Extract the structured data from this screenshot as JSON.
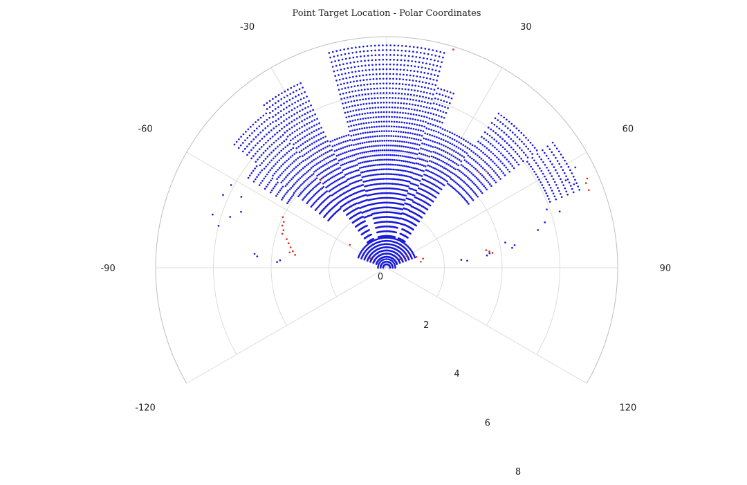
{
  "chart_data": {
    "type": "scatter",
    "coordinate_system": "polar",
    "title": "Point Target Location - Polar Coordinates",
    "theta_zero_location": "top",
    "theta_direction": "clockwise",
    "theta_range_deg": [
      -120,
      120
    ],
    "r_range": [
      0,
      8
    ],
    "theta_ticks": [
      -120,
      -90,
      -60,
      -30,
      0,
      30,
      60,
      90,
      120
    ],
    "theta_tick_labels": [
      "-120",
      "-90",
      "-60",
      "-30",
      "0",
      "30",
      "60",
      "90",
      "120"
    ],
    "r_ticks": [
      0,
      2,
      4,
      6,
      8
    ],
    "r_tick_labels": [
      "0",
      "2",
      "4",
      "6",
      "8"
    ],
    "grid": true,
    "legend": "none",
    "colors": {
      "primary": "#1a1adb",
      "highlight": "#e0301e",
      "grid": "#dcdcdc",
      "outer_ring": "#bdbdbd"
    },
    "series": [
      {
        "color": "#1a1adb",
        "rays": [
          {
            "theta_start": -57,
            "theta_end": -52,
            "theta_step": 1,
            "r_start": 4.1,
            "r_end": 5.8,
            "r_step": 0.23
          },
          {
            "theta_start": -51,
            "theta_end": -38,
            "theta_step": 1,
            "r_start": 2.6,
            "r_end": 6.8,
            "r_step": 0.19
          },
          {
            "theta_start": -37,
            "theta_end": -25,
            "theta_step": 1,
            "r_start": 1.1,
            "r_end": 7.2,
            "r_step": 0.17
          },
          {
            "theta_start": -24,
            "theta_end": -16,
            "theta_step": 1,
            "r_start": 1.9,
            "r_end": 4.9,
            "r_step": 0.18
          },
          {
            "theta_start": -15,
            "theta_end": 15,
            "theta_step": 1,
            "r_start": 1.1,
            "r_end": 7.7,
            "r_step": 0.165
          },
          {
            "theta_start": 16,
            "theta_end": 21,
            "theta_step": 1,
            "r_start": 1.6,
            "r_end": 6.6,
            "r_step": 0.18
          },
          {
            "theta_start": 22,
            "theta_end": 35,
            "theta_step": 1,
            "r_start": 1.1,
            "r_end": 5.2,
            "r_step": 0.17
          },
          {
            "theta_start": 36,
            "theta_end": 52,
            "theta_step": 1,
            "r_start": 3.6,
            "r_end": 6.6,
            "r_step": 0.2
          },
          {
            "theta_start": 53,
            "theta_end": 68,
            "theta_step": 1,
            "r_start": 6.1,
            "r_end": 7.2,
            "r_step": 0.22
          },
          {
            "theta_start": -70,
            "theta_end": 70,
            "theta_step": 2.5,
            "r_start": 0.38,
            "r_end": 1.05,
            "r_step": 0.11
          },
          {
            "theta_start": -90,
            "theta_end": 90,
            "theta_step": 10,
            "r_start": 0.12,
            "r_end": 0.3,
            "r_step": 0.09
          }
        ],
        "points": [
          [
            -64,
            5.6
          ],
          [
            -66,
            6.2
          ],
          [
            -69,
            5.4
          ],
          [
            -72,
            5.7
          ],
          [
            -73,
            6.3
          ],
          [
            -76,
            6.0
          ],
          [
            -62,
            6.1
          ],
          [
            62,
            7.4
          ],
          [
            64,
            6.9
          ],
          [
            66,
            7.1
          ],
          [
            70,
            5.9
          ],
          [
            72,
            6.3
          ],
          [
            74,
            5.7
          ],
          [
            76,
            5.4
          ],
          [
            78,
            4.2
          ],
          [
            80,
            4.5
          ],
          [
            81,
            4.4
          ],
          [
            82,
            3.6
          ],
          [
            83,
            3.5
          ],
          [
            84,
            2.6
          ],
          [
            85,
            2.8
          ],
          [
            -85,
            4.5
          ],
          [
            -84,
            4.6
          ],
          [
            -86,
            3.7
          ],
          [
            -87,
            3.8
          ]
        ]
      },
      {
        "color": "#e0301e",
        "points": [
          [
            17,
            7.9
          ],
          [
            66,
            7.6
          ],
          [
            67,
            7.5
          ],
          [
            69,
            7.5
          ],
          [
            44,
            4.6
          ],
          [
            46,
            4.8
          ],
          [
            -64,
            4.0
          ],
          [
            -66,
            3.9
          ],
          [
            -68,
            3.9
          ],
          [
            -70,
            3.8
          ],
          [
            -72,
            3.8
          ],
          [
            -74,
            3.6
          ],
          [
            -76,
            3.5
          ],
          [
            -78,
            3.4
          ],
          [
            -80,
            3.3
          ],
          [
            -81,
            3.4
          ],
          [
            -82,
            3.2
          ],
          [
            80,
            3.5
          ],
          [
            81,
            3.6
          ],
          [
            82,
            3.7
          ],
          [
            -37,
            3.8
          ],
          [
            -58,
            1.5
          ],
          [
            60,
            0.8
          ],
          [
            70,
            1.1
          ],
          [
            76,
            1.3
          ],
          [
            80,
            1.2
          ],
          [
            -60,
            0.65
          ],
          [
            57,
            0.55
          ]
        ]
      }
    ]
  }
}
